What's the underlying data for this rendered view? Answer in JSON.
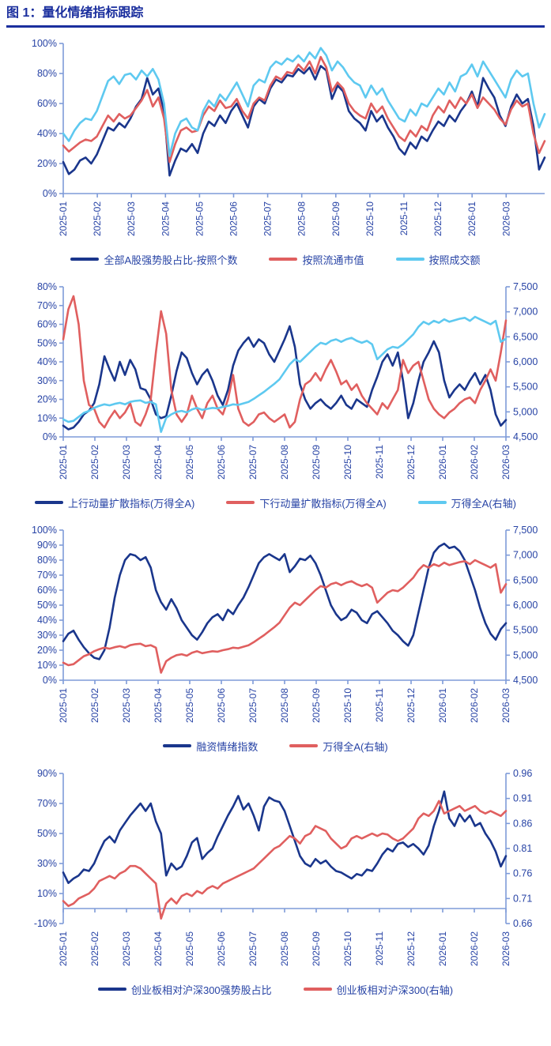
{
  "page": {
    "title": "图 1：量化情绪指标跟踪",
    "colors": {
      "title_accent": "#1b2f9e",
      "axis_line": "#7e9bd9",
      "tick_label": "#2743a5",
      "navy": "#1a368c",
      "red": "#e05f5f",
      "sky": "#5ec9f0"
    }
  },
  "chart_data": [
    {
      "type": "line",
      "title": "全部A股强势股占比",
      "x_labels": [
        "2025-01",
        "2025-02",
        "2025-03",
        "2025-04",
        "2025-05",
        "2025-06",
        "2025-07",
        "2025-08",
        "2025-09",
        "2025-10",
        "2025-11",
        "2025-12",
        "2026-01",
        "2026-03"
      ],
      "x_span": 0.92,
      "left_axis": {
        "min": 0,
        "max": 100,
        "step": 20,
        "format": "percent"
      },
      "right_axis": null,
      "legend_position": "bottom",
      "grid": false,
      "series": [
        {
          "name": "全部A股强势股占比-按照个数",
          "color": "#1a368c",
          "axis": "left",
          "values": [
            21,
            13,
            16,
            22,
            24,
            20,
            26,
            35,
            44,
            42,
            47,
            44,
            50,
            58,
            63,
            77,
            66,
            70,
            55,
            12,
            22,
            30,
            28,
            33,
            27,
            40,
            48,
            45,
            52,
            47,
            55,
            60,
            52,
            44,
            58,
            63,
            60,
            70,
            76,
            74,
            79,
            78,
            83,
            80,
            84,
            76,
            85,
            82,
            63,
            72,
            68,
            55,
            50,
            47,
            42,
            55,
            48,
            52,
            44,
            38,
            30,
            26,
            34,
            30,
            38,
            35,
            42,
            48,
            45,
            52,
            48,
            55,
            60,
            68,
            58,
            77,
            70,
            64,
            52,
            45,
            58,
            66,
            60,
            63,
            45,
            16,
            24
          ]
        },
        {
          "name": "按照流通市值",
          "color": "#e05f5f",
          "axis": "left",
          "values": [
            32,
            28,
            31,
            34,
            36,
            35,
            38,
            45,
            52,
            48,
            53,
            50,
            52,
            57,
            62,
            69,
            58,
            64,
            50,
            21,
            33,
            42,
            44,
            41,
            42,
            52,
            58,
            55,
            62,
            57,
            58,
            63,
            55,
            50,
            60,
            64,
            62,
            72,
            78,
            76,
            81,
            80,
            86,
            82,
            88,
            80,
            91,
            84,
            68,
            74,
            70,
            60,
            55,
            52,
            50,
            60,
            54,
            58,
            50,
            44,
            38,
            35,
            42,
            38,
            45,
            42,
            52,
            58,
            54,
            62,
            57,
            64,
            60,
            66,
            57,
            64,
            60,
            56,
            50,
            46,
            56,
            62,
            58,
            60,
            40,
            27,
            35
          ]
        },
        {
          "name": "按照成交额",
          "color": "#5ec9f0",
          "axis": "left",
          "values": [
            40,
            35,
            42,
            47,
            50,
            49,
            55,
            65,
            75,
            78,
            73,
            79,
            80,
            76,
            82,
            78,
            83,
            76,
            60,
            25,
            40,
            48,
            50,
            44,
            42,
            55,
            62,
            58,
            66,
            62,
            68,
            74,
            66,
            58,
            72,
            76,
            74,
            84,
            88,
            86,
            90,
            88,
            92,
            88,
            94,
            90,
            97,
            92,
            82,
            88,
            84,
            78,
            74,
            72,
            64,
            72,
            66,
            70,
            62,
            56,
            50,
            48,
            56,
            52,
            60,
            58,
            64,
            70,
            66,
            74,
            68,
            78,
            80,
            86,
            78,
            88,
            82,
            76,
            70,
            64,
            76,
            82,
            78,
            80,
            60,
            44,
            53
          ]
        }
      ]
    },
    {
      "type": "line",
      "title": "动量扩散指标",
      "x_labels": [
        "2025-01",
        "2025-02",
        "2025-03",
        "2025-04",
        "2025-05",
        "2025-06",
        "2025-07",
        "2025-08",
        "2025-09",
        "2025-10",
        "2025-11",
        "2025-12",
        "2026-01",
        "2026-02",
        "2026-03"
      ],
      "x_span": 1,
      "left_axis": {
        "min": 0,
        "max": 80,
        "step": 10,
        "format": "percent"
      },
      "right_axis": {
        "min": 4500,
        "max": 7500,
        "step": 500,
        "format": "thousands"
      },
      "legend_position": "bottom",
      "grid": false,
      "series": [
        {
          "name": "上行动量扩散指标(万得全A)",
          "color": "#1a368c",
          "axis": "left",
          "values": [
            6,
            4,
            5,
            8,
            12,
            14,
            18,
            28,
            43,
            36,
            30,
            40,
            33,
            41,
            36,
            26,
            25,
            20,
            12,
            10,
            11,
            22,
            35,
            45,
            42,
            34,
            28,
            33,
            36,
            30,
            22,
            17,
            25,
            38,
            46,
            50,
            53,
            48,
            52,
            50,
            44,
            40,
            46,
            52,
            59,
            48,
            28,
            20,
            15,
            18,
            20,
            17,
            15,
            18,
            22,
            17,
            15,
            20,
            18,
            16,
            25,
            32,
            40,
            44,
            38,
            45,
            30,
            10,
            18,
            30,
            40,
            45,
            51,
            45,
            30,
            21,
            25,
            28,
            25,
            30,
            34,
            28,
            33,
            25,
            12,
            6,
            9
          ]
        },
        {
          "name": "下行动量扩散指标(万得全A)",
          "color": "#e05f5f",
          "axis": "left",
          "values": [
            52,
            68,
            75,
            60,
            30,
            17,
            15,
            8,
            5,
            10,
            14,
            10,
            13,
            18,
            8,
            6,
            12,
            20,
            45,
            67,
            55,
            25,
            12,
            8,
            12,
            22,
            15,
            10,
            18,
            22,
            15,
            12,
            20,
            33,
            15,
            8,
            6,
            8,
            12,
            13,
            10,
            8,
            10,
            12,
            5,
            8,
            20,
            28,
            30,
            34,
            30,
            36,
            41,
            35,
            28,
            30,
            25,
            28,
            22,
            18,
            15,
            12,
            18,
            15,
            20,
            25,
            41,
            34,
            38,
            40,
            30,
            20,
            15,
            12,
            10,
            13,
            15,
            18,
            20,
            21,
            18,
            25,
            30,
            36,
            30,
            45,
            62
          ]
        },
        {
          "name": "万得全A(右轴)",
          "color": "#5ec9f0",
          "axis": "right",
          "values": [
            4850,
            4800,
            4820,
            4900,
            4980,
            5020,
            5080,
            5120,
            5150,
            5130,
            5160,
            5180,
            5150,
            5200,
            5220,
            5230,
            5180,
            5200,
            5150,
            4600,
            4880,
            4950,
            5000,
            5020,
            4990,
            5050,
            5080,
            5040,
            5060,
            5080,
            5070,
            5100,
            5120,
            5150,
            5140,
            5170,
            5200,
            5260,
            5330,
            5400,
            5480,
            5560,
            5650,
            5800,
            5950,
            6050,
            6000,
            6100,
            6200,
            6300,
            6380,
            6350,
            6420,
            6450,
            6400,
            6450,
            6480,
            6420,
            6380,
            6420,
            6350,
            6050,
            6150,
            6250,
            6300,
            6280,
            6350,
            6450,
            6550,
            6700,
            6800,
            6750,
            6820,
            6780,
            6850,
            6800,
            6830,
            6860,
            6880,
            6820,
            6900,
            6850,
            6800,
            6750,
            6820,
            6400,
            6460
          ]
        }
      ]
    },
    {
      "type": "line",
      "title": "融资情绪指数",
      "x_labels": [
        "2025-01",
        "2025-02",
        "2025-03",
        "2025-04",
        "2025-05",
        "2025-06",
        "2025-07",
        "2025-08",
        "2025-09",
        "2025-10",
        "2025-11",
        "2025-12",
        "2026-01",
        "2026-02",
        "2026-03"
      ],
      "x_span": 1,
      "left_axis": {
        "min": 0,
        "max": 100,
        "step": 10,
        "format": "percent"
      },
      "right_axis": {
        "min": 4500,
        "max": 7500,
        "step": 500,
        "format": "thousands"
      },
      "legend_position": "bottom",
      "grid": false,
      "series": [
        {
          "name": "融资情绪指数",
          "color": "#1a368c",
          "axis": "left",
          "values": [
            26,
            31,
            33,
            27,
            22,
            18,
            15,
            14,
            20,
            35,
            55,
            70,
            80,
            84,
            83,
            80,
            82,
            75,
            60,
            52,
            47,
            54,
            48,
            40,
            35,
            30,
            27,
            32,
            38,
            42,
            44,
            40,
            47,
            44,
            50,
            55,
            62,
            70,
            78,
            82,
            84,
            82,
            80,
            84,
            72,
            76,
            81,
            80,
            83,
            78,
            70,
            60,
            50,
            44,
            40,
            42,
            47,
            45,
            40,
            38,
            44,
            46,
            42,
            38,
            33,
            30,
            26,
            23,
            30,
            45,
            60,
            75,
            85,
            89,
            91,
            88,
            89,
            86,
            80,
            70,
            60,
            48,
            38,
            31,
            27,
            34,
            38
          ]
        },
        {
          "name": "万得全A(右轴)",
          "color": "#e05f5f",
          "axis": "right",
          "values": [
            4850,
            4800,
            4820,
            4900,
            4980,
            5020,
            5080,
            5120,
            5150,
            5130,
            5160,
            5180,
            5150,
            5200,
            5220,
            5230,
            5180,
            5200,
            5150,
            4650,
            4880,
            4950,
            5000,
            5020,
            4990,
            5050,
            5080,
            5040,
            5060,
            5080,
            5070,
            5100,
            5120,
            5150,
            5140,
            5170,
            5200,
            5260,
            5330,
            5400,
            5480,
            5560,
            5650,
            5800,
            5950,
            6050,
            6000,
            6100,
            6200,
            6300,
            6380,
            6350,
            6420,
            6450,
            6400,
            6450,
            6480,
            6420,
            6380,
            6420,
            6350,
            6050,
            6150,
            6250,
            6300,
            6280,
            6350,
            6450,
            6550,
            6700,
            6800,
            6750,
            6820,
            6780,
            6850,
            6800,
            6830,
            6860,
            6880,
            6820,
            6900,
            6850,
            6800,
            6750,
            6820,
            6250,
            6420
          ]
        }
      ]
    },
    {
      "type": "line",
      "title": "创业板相对沪深300",
      "x_labels": [
        "2025-01",
        "2025-02",
        "2025-03",
        "2025-04",
        "2025-05",
        "2025-06",
        "2025-07",
        "2025-08",
        "2025-09",
        "2025-10",
        "2025-11",
        "2025-12",
        "2026-01",
        "2026-02",
        "2026-03"
      ],
      "x_span": 1,
      "left_axis": {
        "min": -10,
        "max": 90,
        "step": 20,
        "format": "percent"
      },
      "right_axis": {
        "min": 0.66,
        "max": 0.96,
        "step": 0.05,
        "format": "dec2"
      },
      "legend_position": "bottom",
      "grid": false,
      "series": [
        {
          "name": "创业板相对沪深300强势股占比",
          "color": "#1a368c",
          "axis": "left",
          "values": [
            24,
            17,
            20,
            22,
            26,
            25,
            30,
            38,
            45,
            48,
            44,
            52,
            57,
            62,
            66,
            70,
            65,
            70,
            58,
            50,
            22,
            30,
            26,
            28,
            35,
            44,
            47,
            33,
            37,
            40,
            48,
            55,
            62,
            68,
            75,
            66,
            70,
            62,
            52,
            68,
            74,
            72,
            71,
            65,
            55,
            45,
            35,
            30,
            28,
            33,
            30,
            32,
            28,
            25,
            24,
            22,
            20,
            23,
            22,
            26,
            25,
            30,
            36,
            40,
            38,
            43,
            44,
            41,
            43,
            40,
            36,
            42,
            55,
            65,
            78,
            60,
            55,
            63,
            58,
            62,
            55,
            57,
            50,
            45,
            38,
            28,
            35
          ]
        },
        {
          "name": "创业板相对沪深300(右轴)",
          "color": "#e05f5f",
          "axis": "right",
          "values": [
            0.705,
            0.695,
            0.7,
            0.71,
            0.715,
            0.72,
            0.73,
            0.745,
            0.75,
            0.755,
            0.75,
            0.76,
            0.765,
            0.775,
            0.775,
            0.77,
            0.76,
            0.75,
            0.74,
            0.67,
            0.7,
            0.71,
            0.7,
            0.715,
            0.72,
            0.715,
            0.725,
            0.72,
            0.73,
            0.735,
            0.73,
            0.74,
            0.745,
            0.75,
            0.755,
            0.76,
            0.765,
            0.77,
            0.78,
            0.79,
            0.8,
            0.81,
            0.815,
            0.825,
            0.835,
            0.83,
            0.82,
            0.835,
            0.84,
            0.855,
            0.85,
            0.845,
            0.83,
            0.82,
            0.81,
            0.815,
            0.83,
            0.835,
            0.83,
            0.835,
            0.84,
            0.835,
            0.84,
            0.838,
            0.83,
            0.825,
            0.83,
            0.84,
            0.85,
            0.87,
            0.88,
            0.875,
            0.885,
            0.905,
            0.88,
            0.885,
            0.89,
            0.895,
            0.885,
            0.89,
            0.895,
            0.885,
            0.88,
            0.885,
            0.88,
            0.875,
            0.885
          ]
        }
      ]
    }
  ]
}
